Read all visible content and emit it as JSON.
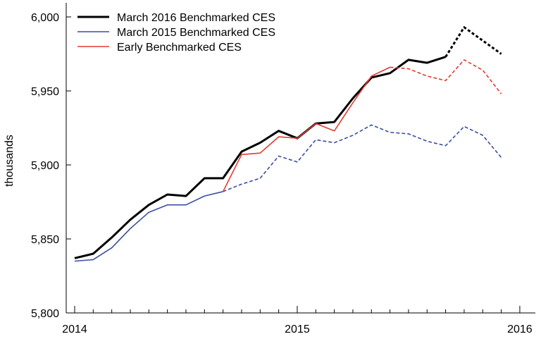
{
  "chart_data": {
    "type": "line",
    "title": "",
    "xlabel": "",
    "ylabel": "thousands",
    "ylim": [
      5800,
      6000
    ],
    "xlim": [
      0,
      24
    ],
    "x_ticks": [
      {
        "value": 0,
        "label": "2014"
      },
      {
        "value": 12,
        "label": "2015"
      },
      {
        "value": 24,
        "label": "2016"
      }
    ],
    "y_ticks": [
      {
        "value": 5800,
        "label": "5,800"
      },
      {
        "value": 5850,
        "label": "5,850"
      },
      {
        "value": 5900,
        "label": "5,900"
      },
      {
        "value": 5950,
        "label": "5,950"
      },
      {
        "value": 6000,
        "label": "6,000"
      }
    ],
    "grid": false,
    "legend_position": "top-left",
    "x_description": "months since January 2014",
    "series": [
      {
        "name": "March 2016 Benchmarked CES",
        "color": "#000000",
        "x": [
          0,
          1,
          2,
          3,
          4,
          5,
          6,
          7,
          8,
          9,
          10,
          11,
          12,
          13,
          14,
          15,
          16,
          17,
          18,
          19,
          20,
          21,
          22,
          23
        ],
        "values": [
          5837,
          5840,
          5851,
          5863,
          5873,
          5880,
          5879,
          5891,
          5891,
          5909,
          5915,
          5923,
          5918,
          5928,
          5929,
          5945,
          5959,
          5962,
          5971,
          5969,
          5973,
          5993,
          5984,
          5975
        ],
        "dashed_from_index": 20
      },
      {
        "name": "March 2015 Benchmarked CES",
        "color": "#3a4ea0",
        "x": [
          0,
          1,
          2,
          3,
          4,
          5,
          6,
          7,
          8,
          9,
          10,
          11,
          12,
          13,
          14,
          15,
          16,
          17,
          18,
          19,
          20,
          21,
          22,
          23
        ],
        "values": [
          5835,
          5836,
          5844,
          5857,
          5868,
          5873,
          5873,
          5879,
          5882,
          5887,
          5891,
          5906,
          5902,
          5917,
          5915,
          5920,
          5927,
          5922,
          5921,
          5916,
          5913,
          5926,
          5920,
          5905
        ],
        "dashed_from_index": 8
      },
      {
        "name": "Early Benchmarked CES",
        "color": "#e03c31",
        "x": [
          8,
          9,
          10,
          11,
          12,
          13,
          14,
          15,
          16,
          17,
          18,
          19,
          20,
          21,
          22,
          23
        ],
        "values": [
          5882,
          5907,
          5908,
          5919,
          5918,
          5928,
          5923,
          5942,
          5960,
          5966,
          5965,
          5960,
          5957,
          5971,
          5964,
          5948
        ],
        "dashed_from_index": 9
      }
    ]
  }
}
